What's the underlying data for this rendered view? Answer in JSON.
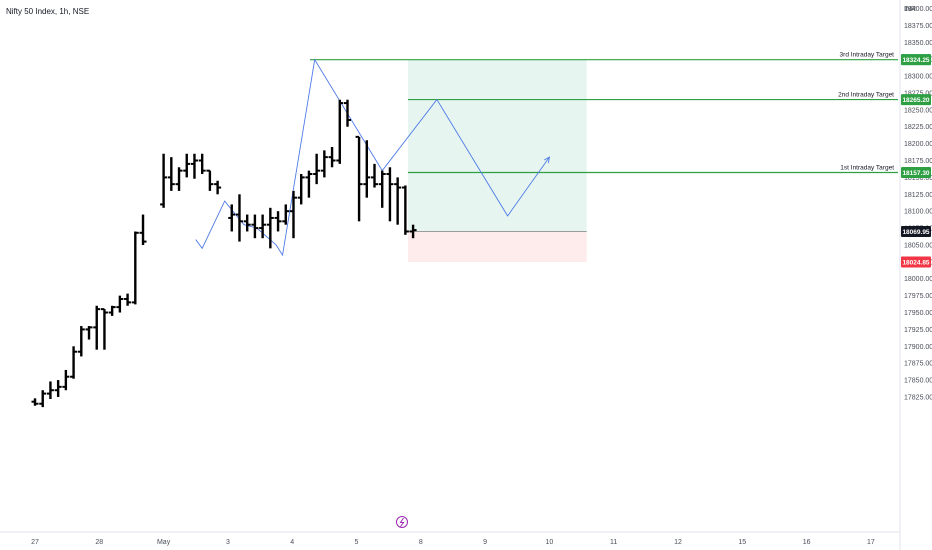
{
  "header": {
    "title": "Nifty 50 Index, 1h, NSE",
    "currency": "INR"
  },
  "colors": {
    "bar": "#000000",
    "target_line": "#2ea043",
    "projection_line": "#4f7be8",
    "profit_zone": "#e6f5ef",
    "loss_zone": "#fdeceb",
    "entry_line": "#9b9b9b",
    "badge_green": "#26a69a",
    "badge_red": "#f23645",
    "badge_black": "#131722",
    "badge_gray": "#787b86"
  },
  "chart_data": {
    "type": "ohlc",
    "price_axis": {
      "ticks": [
        "18400.00",
        "18375.00",
        "18350.00",
        "18325.00",
        "18300.00",
        "18275.00",
        "18250.00",
        "18225.00",
        "18200.00",
        "18175.00",
        "18150.00",
        "18125.00",
        "18100.00",
        "18075.00",
        "18050.00",
        "18025.00",
        "18000.00",
        "17975.00",
        "17950.00",
        "17925.00",
        "17900.00",
        "17875.00",
        "17850.00",
        "17825.00"
      ],
      "ylim": [
        17815,
        18410
      ]
    },
    "time_axis": {
      "labels": [
        "27",
        "28",
        "May",
        "3",
        "4",
        "5",
        "8",
        "9",
        "10",
        "11",
        "12",
        "15",
        "16",
        "17"
      ],
      "positions": [
        0,
        1,
        2,
        3,
        4,
        5,
        6,
        7,
        8,
        9,
        10,
        11,
        12,
        13
      ]
    },
    "bars": [
      {
        "x": 0.0,
        "o": 17818,
        "h": 17823,
        "l": 17812,
        "c": 17815
      },
      {
        "x": 0.12,
        "o": 17815,
        "h": 17835,
        "l": 17810,
        "c": 17830
      },
      {
        "x": 0.24,
        "o": 17830,
        "h": 17848,
        "l": 17822,
        "c": 17835
      },
      {
        "x": 0.36,
        "o": 17835,
        "h": 17850,
        "l": 17825,
        "c": 17840
      },
      {
        "x": 0.48,
        "o": 17840,
        "h": 17865,
        "l": 17835,
        "c": 17855
      },
      {
        "x": 0.6,
        "o": 17855,
        "h": 17900,
        "l": 17852,
        "c": 17892
      },
      {
        "x": 0.72,
        "o": 17892,
        "h": 17930,
        "l": 17885,
        "c": 17925
      },
      {
        "x": 0.84,
        "o": 17925,
        "h": 17930,
        "l": 17910,
        "c": 17928
      },
      {
        "x": 0.96,
        "o": 17928,
        "h": 17960,
        "l": 17895,
        "c": 17955
      },
      {
        "x": 1.08,
        "o": 17955,
        "h": 17955,
        "l": 17895,
        "c": 17950
      },
      {
        "x": 1.2,
        "o": 17950,
        "h": 17960,
        "l": 17945,
        "c": 17958
      },
      {
        "x": 1.32,
        "o": 17958,
        "h": 17975,
        "l": 17950,
        "c": 17970
      },
      {
        "x": 1.44,
        "o": 17970,
        "h": 17978,
        "l": 17960,
        "c": 17965
      },
      {
        "x": 1.56,
        "o": 17965,
        "h": 18070,
        "l": 17962,
        "c": 18068
      },
      {
        "x": 1.68,
        "o": 18068,
        "h": 18095,
        "l": 18050,
        "c": 18055
      },
      {
        "x": 2.0,
        "o": 18110,
        "h": 18185,
        "l": 18105,
        "c": 18150
      },
      {
        "x": 2.12,
        "o": 18150,
        "h": 18180,
        "l": 18130,
        "c": 18140
      },
      {
        "x": 2.24,
        "o": 18140,
        "h": 18165,
        "l": 18130,
        "c": 18160
      },
      {
        "x": 2.36,
        "o": 18160,
        "h": 18185,
        "l": 18150,
        "c": 18170
      },
      {
        "x": 2.48,
        "o": 18170,
        "h": 18185,
        "l": 18148,
        "c": 18175
      },
      {
        "x": 2.6,
        "o": 18175,
        "h": 18185,
        "l": 18155,
        "c": 18160
      },
      {
        "x": 2.72,
        "o": 18160,
        "h": 18160,
        "l": 18130,
        "c": 18140
      },
      {
        "x": 2.84,
        "o": 18140,
        "h": 18145,
        "l": 18125,
        "c": 18135
      },
      {
        "x": 3.06,
        "o": 18090,
        "h": 18110,
        "l": 18070,
        "c": 18095
      },
      {
        "x": 3.18,
        "o": 18095,
        "h": 18125,
        "l": 18055,
        "c": 18085
      },
      {
        "x": 3.3,
        "o": 18085,
        "h": 18095,
        "l": 18070,
        "c": 18080
      },
      {
        "x": 3.42,
        "o": 18080,
        "h": 18095,
        "l": 18060,
        "c": 18075
      },
      {
        "x": 3.54,
        "o": 18075,
        "h": 18095,
        "l": 18060,
        "c": 18080
      },
      {
        "x": 3.66,
        "o": 18080,
        "h": 18105,
        "l": 18045,
        "c": 18090
      },
      {
        "x": 3.78,
        "o": 18090,
        "h": 18100,
        "l": 18070,
        "c": 18085
      },
      {
        "x": 3.9,
        "o": 18085,
        "h": 18110,
        "l": 18080,
        "c": 18100
      },
      {
        "x": 4.02,
        "o": 18100,
        "h": 18130,
        "l": 18060,
        "c": 18120
      },
      {
        "x": 4.14,
        "o": 18120,
        "h": 18155,
        "l": 18110,
        "c": 18150
      },
      {
        "x": 4.26,
        "o": 18150,
        "h": 18160,
        "l": 18120,
        "c": 18155
      },
      {
        "x": 4.38,
        "o": 18155,
        "h": 18185,
        "l": 18140,
        "c": 18160
      },
      {
        "x": 4.5,
        "o": 18160,
        "h": 18190,
        "l": 18150,
        "c": 18180
      },
      {
        "x": 4.62,
        "o": 18180,
        "h": 18195,
        "l": 18165,
        "c": 18175
      },
      {
        "x": 4.74,
        "o": 18175,
        "h": 18265,
        "l": 18170,
        "c": 18260
      },
      {
        "x": 4.86,
        "o": 18260,
        "h": 18265,
        "l": 18225,
        "c": 18235
      },
      {
        "x": 5.04,
        "o": 18210,
        "h": 18210,
        "l": 18085,
        "c": 18140
      },
      {
        "x": 5.16,
        "o": 18140,
        "h": 18205,
        "l": 18120,
        "c": 18150
      },
      {
        "x": 5.28,
        "o": 18150,
        "h": 18170,
        "l": 18135,
        "c": 18140
      },
      {
        "x": 5.4,
        "o": 18140,
        "h": 18160,
        "l": 18105,
        "c": 18155
      },
      {
        "x": 5.52,
        "o": 18155,
        "h": 18165,
        "l": 18085,
        "c": 18140
      },
      {
        "x": 5.64,
        "o": 18140,
        "h": 18150,
        "l": 18080,
        "c": 18135
      },
      {
        "x": 5.76,
        "o": 18135,
        "h": 18138,
        "l": 18065,
        "c": 18070
      },
      {
        "x": 5.88,
        "o": 18070,
        "h": 18080,
        "l": 18060,
        "c": 18072
      }
    ],
    "levels": [
      {
        "name": "3rd Intraday Target",
        "value": 18324.25,
        "label": "18324.25"
      },
      {
        "name": "2nd Intraday Target",
        "value": 18265.2,
        "label": "18265.20"
      },
      {
        "name": "1st Intraday Target",
        "value": 18157.3,
        "label": "18157.30"
      }
    ],
    "position_tool": {
      "entry": 18069.95,
      "entry_label": "18069.95",
      "stop": 18024.85,
      "stop_label": "18024.85",
      "target": 18324.25,
      "target_label": "18324.25",
      "x_start": 5.8,
      "x_end": 8.58
    },
    "last_price": {
      "value": 18069.95,
      "label": "18069.95"
    },
    "projection_path": [
      {
        "x": 2.5,
        "y": 18058
      },
      {
        "x": 2.6,
        "y": 18045
      },
      {
        "x": 2.95,
        "y": 18115
      },
      {
        "x": 3.25,
        "y": 18080
      },
      {
        "x": 3.45,
        "y": 18075
      },
      {
        "x": 3.75,
        "y": 18050
      },
      {
        "x": 3.85,
        "y": 18035
      },
      {
        "x": 4.35,
        "y": 18324.25
      },
      {
        "x": 5.4,
        "y": 18160
      },
      {
        "x": 6.25,
        "y": 18265.2
      },
      {
        "x": 7.35,
        "y": 18093
      },
      {
        "x": 8.0,
        "y": 18180
      }
    ]
  }
}
